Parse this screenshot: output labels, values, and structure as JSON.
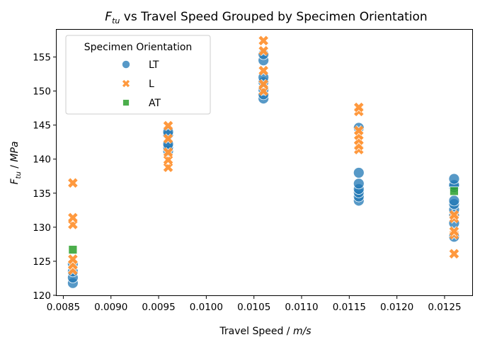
{
  "chart_data": {
    "type": "scatter",
    "title_main": "F",
    "title_sub": "tu",
    "title_rest": " vs Travel Speed Grouped by Specimen Orientation",
    "xlabel_prefix": "Travel Speed / ",
    "xlabel_unit": "m/s",
    "ylabel_main": "F",
    "ylabel_sub": "tu",
    "ylabel_rest": " / ",
    "ylabel_unit": "MPa",
    "xlim": [
      0.00843,
      0.01279
    ],
    "ylim": [
      120,
      159
    ],
    "x_ticks": [
      "0.0085",
      "0.0090",
      "0.0095",
      "0.0100",
      "0.0105",
      "0.0110",
      "0.0115",
      "0.0120",
      "0.0125"
    ],
    "y_ticks": [
      "120",
      "125",
      "130",
      "135",
      "140",
      "145",
      "150",
      "155"
    ],
    "grid": false,
    "legend": {
      "title": "Specimen Orientation",
      "position": "top-left",
      "entries": [
        "LT",
        "L",
        "AT"
      ]
    },
    "series": [
      {
        "name": "LT",
        "marker": "circle",
        "color": "#1f77b4",
        "points": [
          [
            0.0086,
            121.8
          ],
          [
            0.0086,
            122.6
          ],
          [
            0.0086,
            123.5
          ],
          [
            0.0086,
            124.6
          ],
          [
            0.0096,
            141.2
          ],
          [
            0.0096,
            141.8
          ],
          [
            0.0096,
            142.2
          ],
          [
            0.0096,
            143.6
          ],
          [
            0.0096,
            144.0
          ],
          [
            0.0106,
            148.9
          ],
          [
            0.0106,
            149.5
          ],
          [
            0.0106,
            150.2
          ],
          [
            0.0106,
            151.3
          ],
          [
            0.0106,
            152.0
          ],
          [
            0.0106,
            154.5
          ],
          [
            0.0106,
            155.4
          ],
          [
            0.0116,
            133.9
          ],
          [
            0.0116,
            134.5
          ],
          [
            0.0116,
            135.1
          ],
          [
            0.0116,
            135.6
          ],
          [
            0.0116,
            136.4
          ],
          [
            0.0116,
            138.0
          ],
          [
            0.0116,
            144.6
          ],
          [
            0.0126,
            128.6
          ],
          [
            0.0126,
            130.6
          ],
          [
            0.0126,
            131.7
          ],
          [
            0.0126,
            132.6
          ],
          [
            0.0126,
            133.4
          ],
          [
            0.0126,
            133.9
          ],
          [
            0.0126,
            135.9
          ],
          [
            0.0126,
            136.2
          ],
          [
            0.0126,
            137.1
          ]
        ]
      },
      {
        "name": "L",
        "marker": "x",
        "color": "#ff7f0e",
        "points": [
          [
            0.0086,
            123.7
          ],
          [
            0.0086,
            124.5
          ],
          [
            0.0086,
            125.3
          ],
          [
            0.0086,
            130.4
          ],
          [
            0.0086,
            131.4
          ],
          [
            0.0086,
            136.5
          ],
          [
            0.0096,
            138.8
          ],
          [
            0.0096,
            139.9
          ],
          [
            0.0096,
            141.0
          ],
          [
            0.0096,
            143.0
          ],
          [
            0.0096,
            144.9
          ],
          [
            0.0106,
            150.0
          ],
          [
            0.0106,
            151.0
          ],
          [
            0.0106,
            153.0
          ],
          [
            0.0106,
            155.9
          ],
          [
            0.0106,
            157.4
          ],
          [
            0.0116,
            141.4
          ],
          [
            0.0116,
            142.0
          ],
          [
            0.0116,
            142.8
          ],
          [
            0.0116,
            143.5
          ],
          [
            0.0116,
            144.2
          ],
          [
            0.0116,
            147.0
          ],
          [
            0.0116,
            147.6
          ],
          [
            0.0126,
            126.1
          ],
          [
            0.0126,
            128.9
          ],
          [
            0.0126,
            129.4
          ],
          [
            0.0126,
            131.3
          ],
          [
            0.0126,
            131.8
          ]
        ]
      },
      {
        "name": "AT",
        "marker": "square",
        "color": "#2ca02c",
        "points": [
          [
            0.0086,
            126.7
          ],
          [
            0.0126,
            135.3
          ]
        ]
      }
    ]
  }
}
